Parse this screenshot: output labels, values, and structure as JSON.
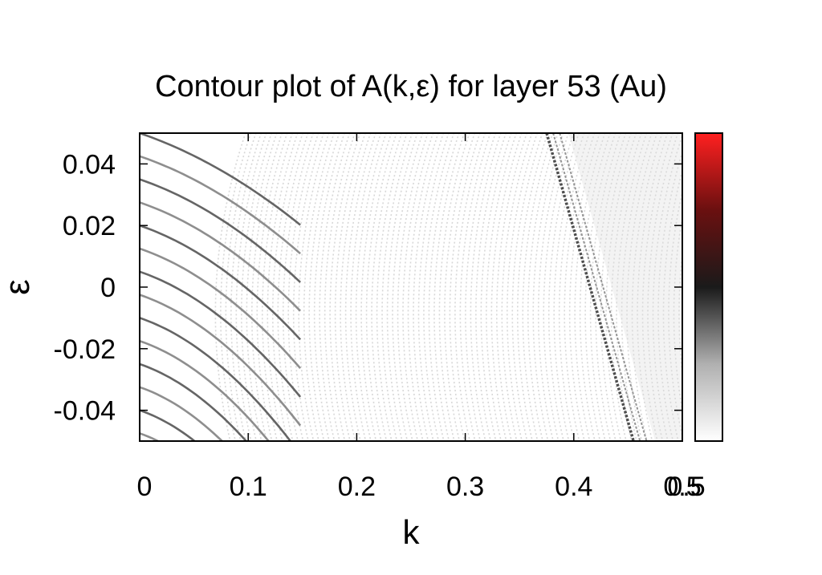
{
  "chart_data": {
    "type": "heatmap",
    "title": "Contour plot of A(k,ε)  for layer 53 (Au)",
    "xlabel": "k",
    "ylabel": "ε",
    "xlim": [
      0,
      0.5
    ],
    "ylim": [
      -0.05,
      0.05
    ],
    "xticks": [
      "0",
      "0.1",
      "0.2",
      "0.3",
      "0.4",
      "0.5"
    ],
    "xtick_values": [
      0,
      0.1,
      0.2,
      0.3,
      0.4,
      0.5
    ],
    "yticks": [
      "0.04",
      "0.02",
      "0",
      "-0.02",
      "-0.04"
    ],
    "ytick_values": [
      0.04,
      0.02,
      0,
      -0.02,
      -0.04
    ],
    "colorbar": {
      "range": [
        0,
        0.5
      ],
      "tick_labels": [
        "0.5"
      ],
      "colors": [
        "#ffffff",
        "#b0b0b0",
        "#1a1a1a",
        "#6a1010",
        "#ff2020"
      ]
    },
    "features": {
      "low_k_bands": {
        "k_range": [
          0,
          0.15
        ],
        "count": 14,
        "curvature": "parabolic, dispersing down with k"
      },
      "fermi_crossing_band": {
        "k_at_top": 0.375,
        "k_at_bottom": 0.455
      },
      "dense_fringes": {
        "k_range": [
          0.1,
          0.5
        ]
      }
    },
    "grid": false,
    "legend": "colorbar-right"
  }
}
